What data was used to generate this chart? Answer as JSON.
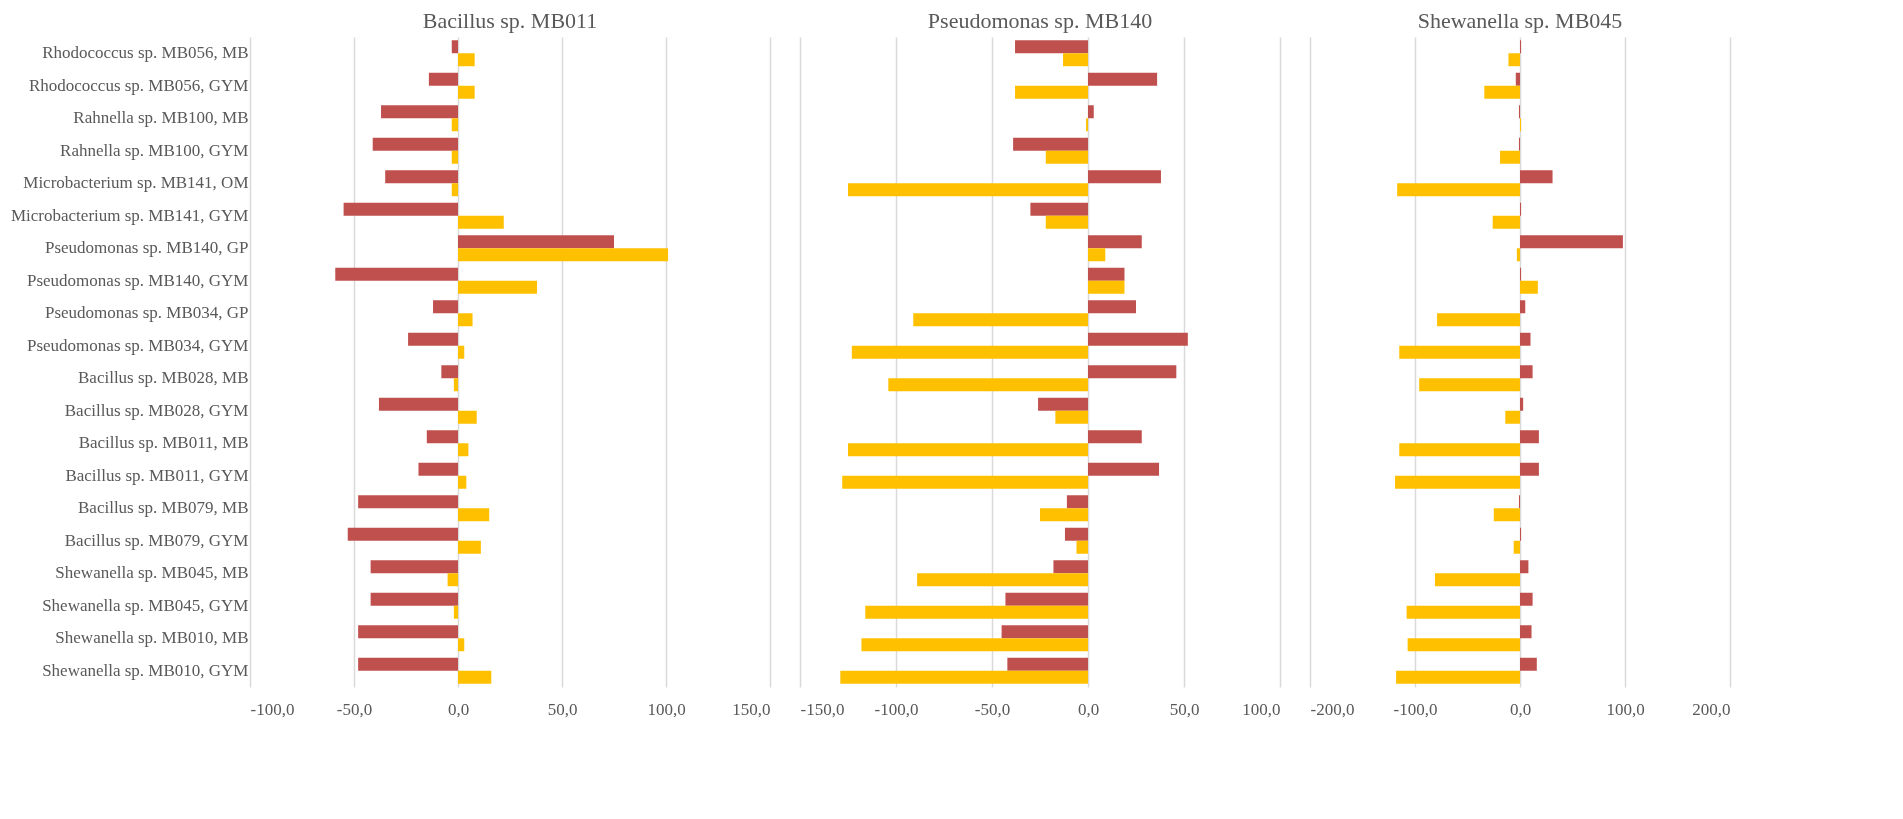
{
  "chart_data": [
    {
      "type": "bar",
      "orientation": "horizontal",
      "title": "Bacillus sp. MB011",
      "categories": [
        "Rhodococcus sp. MB056, MB",
        "Rhodococcus sp. MB056, GYM",
        "Rahnella sp. MB100, MB",
        "Rahnella sp. MB100, GYM",
        "Microbacterium sp. MB141, OM",
        "Microbacterium sp. MB141, GYM",
        "Pseudomonas sp. MB140, GP",
        "Pseudomonas sp. MB140, GYM",
        "Pseudomonas sp. MB034, GP",
        "Pseudomonas sp. MB034, GYM",
        "Bacillus sp. MB028, MB",
        "Bacillus sp. MB028, GYM",
        "Bacillus sp. MB011, MB",
        "Bacillus sp. MB011, GYM",
        "Bacillus sp. MB079, MB",
        "Bacillus sp. MB079, GYM",
        "Shewanella sp. MB045, MB",
        "Shewanella sp. MB045, GYM",
        "Shewanella sp. MB010, MB",
        "Shewanella sp. MB010, GYM"
      ],
      "series": [
        {
          "color": "#c0504d",
          "values": [
            -3,
            -14,
            -37,
            -41,
            -35,
            -55,
            75,
            -59,
            -12,
            -24,
            -8,
            -38,
            -15,
            -19,
            -48,
            -53,
            -42,
            -42,
            -48,
            -48
          ]
        },
        {
          "color": "#ffc000",
          "values": [
            8,
            8,
            -3,
            -3,
            -3,
            22,
            101,
            38,
            7,
            3,
            -2,
            9,
            5,
            4,
            15,
            11,
            -5,
            -2,
            3,
            16
          ]
        }
      ],
      "xlim": [
        -100,
        150
      ],
      "xticks": [
        {
          "value": -100,
          "label": "-100,0"
        },
        {
          "value": -50,
          "label": "-50,0"
        },
        {
          "value": 0,
          "label": "0,0"
        },
        {
          "value": 50,
          "label": "50,0"
        },
        {
          "value": 100,
          "label": "100,0"
        },
        {
          "value": 150,
          "label": "150,0"
        }
      ],
      "grid": "x"
    },
    {
      "type": "bar",
      "orientation": "horizontal",
      "title": "Pseudomonas sp. MB140",
      "categories": [
        null,
        null,
        null,
        null,
        null,
        null,
        null,
        null,
        null,
        null,
        null,
        null,
        null,
        null,
        null,
        null,
        null,
        null,
        null,
        null
      ],
      "series": [
        {
          "color": "#c0504d",
          "values": [
            -38,
            36,
            3,
            -39,
            38,
            -30,
            28,
            19,
            25,
            52,
            46,
            -26,
            28,
            37,
            -11,
            -12,
            -18,
            -43,
            -45,
            -42
          ]
        },
        {
          "color": "#ffc000",
          "values": [
            -13,
            -38,
            -1,
            -22,
            -125,
            -22,
            9,
            19,
            -91,
            -123,
            -104,
            -17,
            -125,
            -128,
            -25,
            -6,
            -89,
            -116,
            -118,
            -129
          ]
        }
      ],
      "xlim": [
        -150,
        100
      ],
      "xticks": [
        {
          "value": -150,
          "label": "-150,0"
        },
        {
          "value": -100,
          "label": "-100,0"
        },
        {
          "value": -50,
          "label": "-50,0"
        },
        {
          "value": 0,
          "label": "0,0"
        },
        {
          "value": 50,
          "label": "50,0"
        },
        {
          "value": 100,
          "label": "100,0"
        }
      ],
      "grid": "x",
      "tick_labels": "x"
    },
    {
      "type": "bar",
      "orientation": "horizontal",
      "title": "Shewanella sp. MB045",
      "categories": [
        null,
        null,
        null,
        null,
        null,
        null,
        null,
        null,
        null,
        null,
        null,
        null,
        null,
        null,
        null,
        null,
        null,
        null,
        null,
        null
      ],
      "series": [
        {
          "color": "#c0504d",
          "values": [
            1,
            -4,
            -1,
            -1,
            31,
            1,
            98,
            1,
            5,
            10,
            12,
            3,
            18,
            18,
            -1,
            1,
            8,
            12,
            11,
            16
          ]
        },
        {
          "color": "#ffc000",
          "values": [
            -11,
            -34,
            1,
            -19,
            -117,
            -26,
            -3,
            17,
            -79,
            -115,
            -96,
            -14,
            -115,
            -119,
            -25,
            -6,
            -81,
            -108,
            -107,
            -118
          ]
        }
      ],
      "xlim": [
        -200,
        200
      ],
      "xticks": [
        {
          "value": -200,
          "label": "-200,0"
        },
        {
          "value": -100,
          "label": "-100,0"
        },
        {
          "value": 0,
          "label": "0,0"
        },
        {
          "value": 100,
          "label": "100,0"
        },
        {
          "value": 200,
          "label": "200,0"
        }
      ],
      "grid": "x",
      "tick_labels": "x"
    }
  ]
}
